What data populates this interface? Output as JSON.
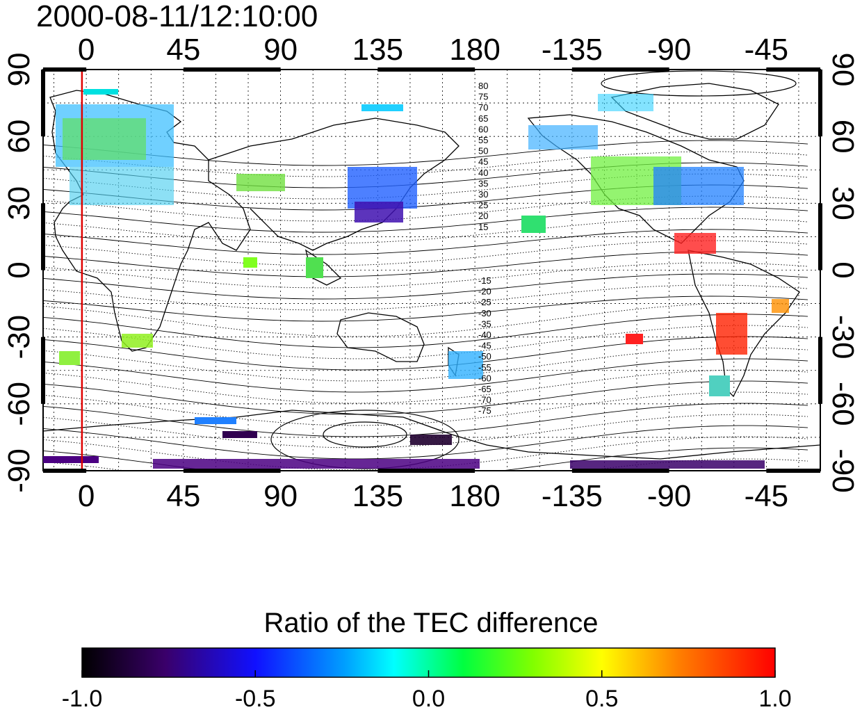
{
  "title": "2000-08-11/12:10:00",
  "map": {
    "x_ticks": [
      "0",
      "45",
      "90",
      "135",
      "180",
      "-135",
      "-90",
      "-45"
    ],
    "x_tick_lons": [
      0,
      45,
      90,
      135,
      180,
      225,
      270,
      315
    ],
    "y_ticks": [
      "90",
      "60",
      "30",
      "0",
      "-30",
      "-60",
      "-90"
    ],
    "y_tick_lats": [
      90,
      60,
      30,
      0,
      -30,
      -60,
      -90
    ],
    "lon_range": [
      -20,
      340
    ],
    "lat_range": [
      -90,
      90
    ],
    "reference_meridian_lon": -2,
    "contour_labels_north": [
      "80",
      "75",
      "70",
      "65",
      "60",
      "55",
      "50",
      "45",
      "40",
      "35",
      "30",
      "25",
      "20",
      "15"
    ],
    "contour_labels_south": [
      "-15",
      "-20",
      "-25",
      "-30",
      "-35",
      "-40",
      "-45",
      "-50",
      "-55",
      "-60",
      "-65",
      "-70",
      "-75"
    ],
    "grid": "dotted",
    "colors": {
      "reference_meridian": "#e00000",
      "contours": "#000000"
    }
  },
  "colorbar": {
    "title": "Ratio of the TEC difference",
    "ticks": [
      "-1.0",
      "-0.5",
      "0.0",
      "0.5",
      "1.0"
    ],
    "range": [
      -1.0,
      1.0
    ],
    "colormap_stops": [
      "#000000",
      "#4b0082",
      "#0000ff",
      "#00ffff",
      "#00ff00",
      "#ffff00",
      "#ff8c00",
      "#ff0000"
    ]
  }
}
